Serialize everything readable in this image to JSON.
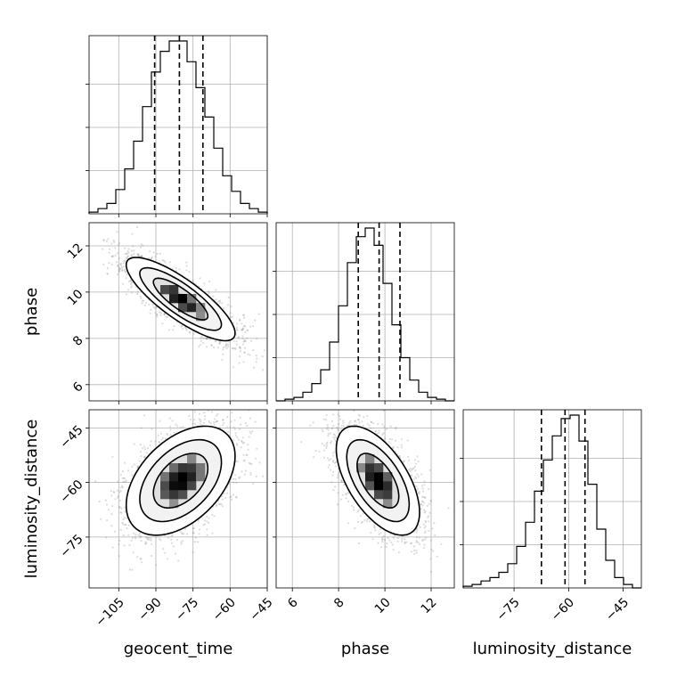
{
  "chart_data": {
    "type": "corner",
    "parameters": [
      "geocent_time",
      "phase",
      "luminosity_distance"
    ],
    "labels": {
      "x_bottom": [
        "geocent_time",
        "phase",
        "luminosity_distance"
      ],
      "y_left": [
        "phase",
        "luminosity_distance"
      ]
    },
    "ranges": {
      "geocent_time": [
        -117,
        -45
      ],
      "phase": [
        5.3,
        13.0
      ],
      "luminosity_distance": [
        -89,
        -40
      ]
    },
    "ticks": {
      "geocent_time": [
        {
          "value": -105,
          "label": "−105"
        },
        {
          "value": -90,
          "label": "−90"
        },
        {
          "value": -75,
          "label": "−75"
        },
        {
          "value": -60,
          "label": "−60"
        },
        {
          "value": -45,
          "label": "−45"
        }
      ],
      "phase": [
        {
          "value": 6,
          "label": "6"
        },
        {
          "value": 8,
          "label": "8"
        },
        {
          "value": 10,
          "label": "10"
        },
        {
          "value": 12,
          "label": "12"
        }
      ],
      "luminosity_distance": [
        {
          "value": -75,
          "label": "−75"
        },
        {
          "value": -60,
          "label": "−60"
        },
        {
          "value": -45,
          "label": "−45"
        }
      ]
    },
    "quantiles": {
      "geocent_time": [
        -90.5,
        -80.5,
        -71.0
      ],
      "phase": [
        8.85,
        9.75,
        10.65
      ],
      "luminosity_distance": [
        -67.5,
        -61.0,
        -55.5
      ]
    },
    "histograms": {
      "geocent_time": {
        "edges": [
          -117,
          -113.4,
          -109.8,
          -106.2,
          -102.6,
          -99,
          -95.4,
          -91.8,
          -88.2,
          -84.6,
          -81,
          -77.4,
          -73.8,
          -70.2,
          -66.6,
          -63,
          -59.4,
          -55.8,
          -52.2,
          -48.6,
          -45
        ],
        "counts": [
          0.01,
          0.03,
          0.06,
          0.14,
          0.26,
          0.42,
          0.62,
          0.82,
          0.94,
          1.0,
          1.0,
          0.88,
          0.73,
          0.56,
          0.38,
          0.22,
          0.13,
          0.06,
          0.03,
          0.01
        ]
      },
      "phase": {
        "edges": [
          5.3,
          5.685,
          6.07,
          6.455,
          6.84,
          7.225,
          7.61,
          7.995,
          8.38,
          8.765,
          9.15,
          9.535,
          9.92,
          10.305,
          10.69,
          11.075,
          11.46,
          11.845,
          12.23,
          12.615,
          13.0
        ],
        "counts": [
          0.0,
          0.01,
          0.02,
          0.05,
          0.1,
          0.18,
          0.34,
          0.55,
          0.8,
          0.95,
          1.0,
          0.9,
          0.68,
          0.44,
          0.25,
          0.12,
          0.05,
          0.02,
          0.01,
          0.0
        ]
      },
      "luminosity_distance": {
        "edges": [
          -89,
          -86.55,
          -84.1,
          -81.65,
          -79.2,
          -76.75,
          -74.3,
          -71.85,
          -69.4,
          -66.95,
          -64.5,
          -62.05,
          -59.6,
          -57.15,
          -54.7,
          -52.25,
          -49.8,
          -47.35,
          -44.9,
          -42.45,
          -40
        ],
        "counts": [
          0.01,
          0.02,
          0.04,
          0.06,
          0.09,
          0.14,
          0.24,
          0.38,
          0.56,
          0.74,
          0.88,
          0.98,
          1.0,
          0.85,
          0.6,
          0.34,
          0.16,
          0.06,
          0.02,
          0.0
        ]
      }
    },
    "joint": [
      {
        "x": "geocent_time",
        "y": "phase",
        "mean": [
          -80,
          9.7
        ],
        "sd": [
          11,
          0.9
        ],
        "rho": -0.82,
        "seed": 11
      },
      {
        "x": "geocent_time",
        "y": "luminosity_distance",
        "mean": [
          -80,
          -59.5
        ],
        "sd": [
          11,
          7.5
        ],
        "rho": 0.45,
        "seed": 23
      },
      {
        "x": "phase",
        "y": "luminosity_distance",
        "mean": [
          9.7,
          -59.5
        ],
        "sd": [
          0.9,
          7.5
        ],
        "rho": -0.58,
        "seed": 37
      }
    ],
    "contour_levels_sigma": [
      0.5,
      1.0,
      1.5,
      2.0
    ]
  }
}
